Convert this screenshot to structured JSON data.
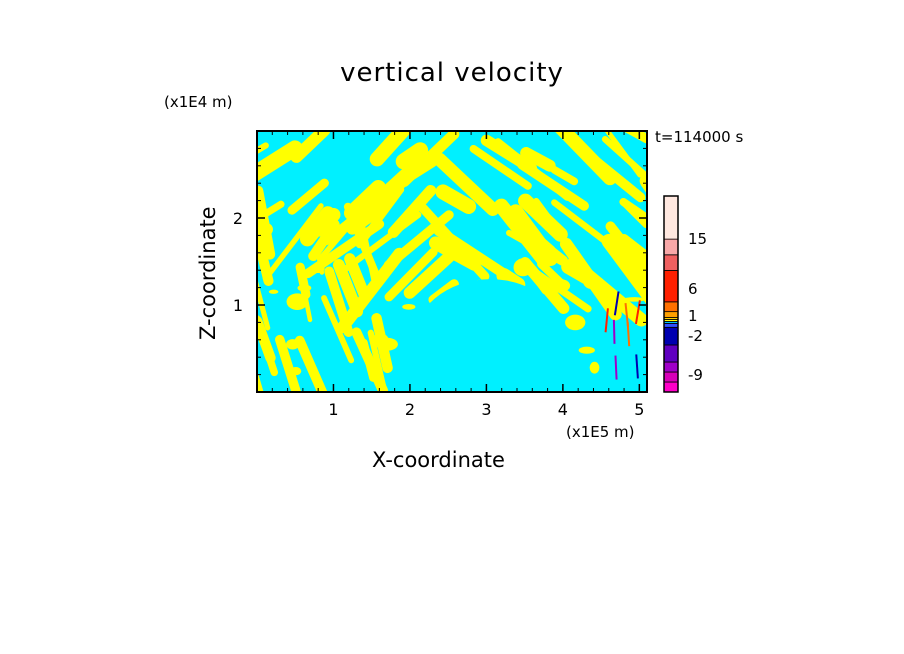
{
  "chart_data": {
    "type": "heatmap",
    "title": "vertical velocity",
    "xlabel": "X-coordinate",
    "ylabel": "Z-coordinate",
    "x_scale_label": "(x1E5 m)",
    "z_scale_label": "(x1E4 m)",
    "time_label": "t=114000 s",
    "x_range": [
      0,
      5.1
    ],
    "z_range": [
      0,
      3.0
    ],
    "x_ticks": [
      "1",
      "2",
      "3",
      "4",
      "5"
    ],
    "z_ticks": [
      "1",
      "2"
    ],
    "grid": false,
    "background_color": "#00f0ff",
    "pattern_color": "#ffff00",
    "colorbar": {
      "tick_labels": [
        "15",
        "6",
        "1",
        "-2",
        "-9"
      ],
      "colors": [
        "#ff00c8",
        "#d800b8",
        "#a000c8",
        "#6000c0",
        "#0000b0",
        "#3050ff",
        "#00c0ff",
        "#ffff00",
        "#ffd000",
        "#ffa000",
        "#ff7000",
        "#ff2000",
        "#f06060",
        "#f8a8a8",
        "#ffe8e0"
      ]
    }
  }
}
